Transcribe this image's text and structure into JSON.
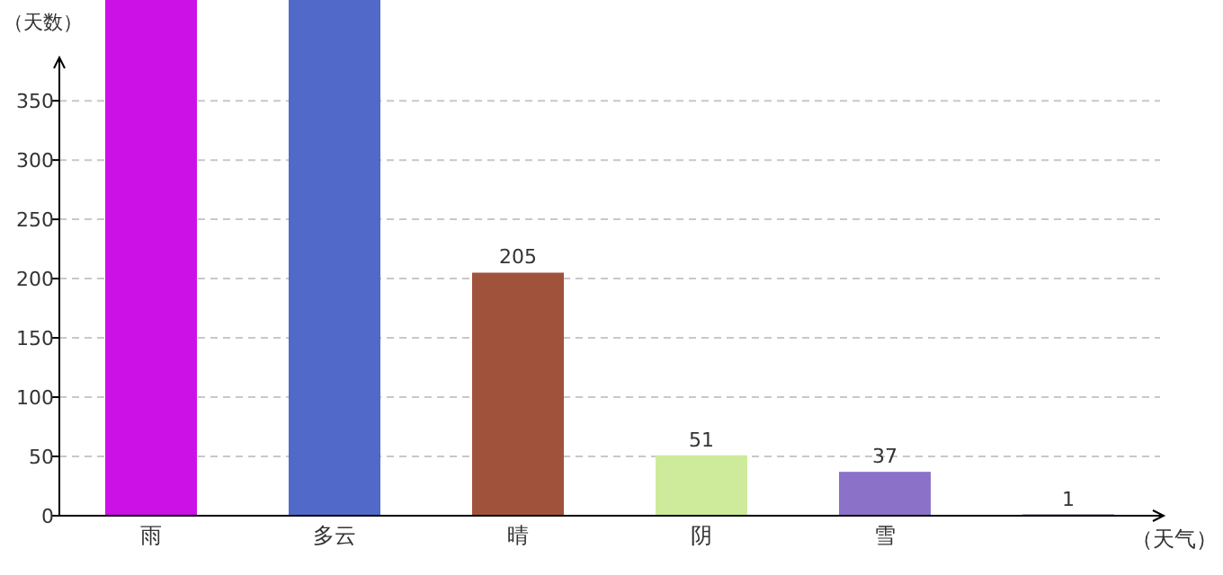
{
  "chart_data": {
    "type": "bar",
    "xlabel": "（天气）",
    "ylabel": "（天数）",
    "categories": [
      "雨",
      "多云",
      "晴",
      "阴",
      "雪",
      null
    ],
    "values": [
      435,
      435,
      205,
      51,
      37,
      1
    ],
    "colors": [
      "#cc11e6",
      "#5169c9",
      "#a0523a",
      "#cdeb9b",
      "#8b72c8",
      "#2a0a4a"
    ],
    "value_labels": [
      null,
      null,
      "205",
      "51",
      "37",
      "1"
    ],
    "ylim": [
      0,
      435
    ],
    "yticks": [
      0,
      50,
      100,
      150,
      200,
      250,
      300,
      350
    ],
    "grid": "y"
  }
}
